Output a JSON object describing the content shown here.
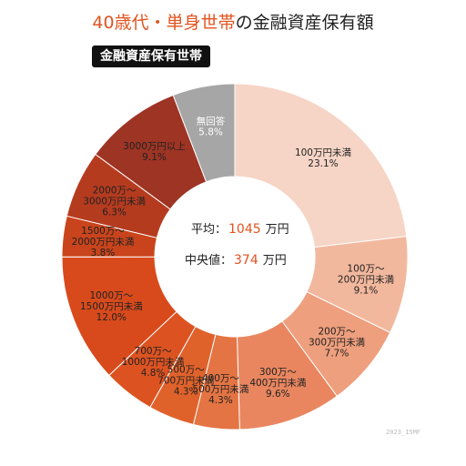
{
  "header": {
    "title_accent": "40歳代・単身世帯",
    "title_rest": "の金融資産保有額",
    "badge": "金融資産保有世帯"
  },
  "summary": {
    "average_label": "平均：",
    "average_value": "1045",
    "average_unit": "万円",
    "median_label": "中央値：",
    "median_value": "374",
    "median_unit": "万円"
  },
  "watermark": "2023_15MF",
  "chart_data": {
    "type": "pie",
    "title": "40歳代・単身世帯の金融資産保有額",
    "subtitle": "金融資産保有世帯",
    "slices": [
      {
        "lines": [
          "100万円未満",
          "23.1%"
        ],
        "value": 23.1,
        "color": "#f6d5c6"
      },
      {
        "lines": [
          "100万～",
          "200万円未満",
          "9.1%"
        ],
        "value": 9.1,
        "color": "#f2b89e"
      },
      {
        "lines": [
          "200万～",
          "300万円未満",
          "7.7%"
        ],
        "value": 7.7,
        "color": "#ee9f7d"
      },
      {
        "lines": [
          "300万～",
          "400万円未満",
          "9.6%"
        ],
        "value": 9.6,
        "color": "#e98660"
      },
      {
        "lines": [
          "400万～",
          "500万円未満",
          "4.3%"
        ],
        "value": 4.3,
        "color": "#e47443"
      },
      {
        "lines": [
          "500万～",
          "700万円未満",
          "4.3%"
        ],
        "value": 4.3,
        "color": "#e0622b"
      },
      {
        "lines": [
          "700万～",
          "1000万円未満",
          "4.8%"
        ],
        "value": 4.8,
        "color": "#dc5321"
      },
      {
        "lines": [
          "1000万～",
          "1500万円未満",
          "12.0%"
        ],
        "value": 12.0,
        "color": "#d84a1c"
      },
      {
        "lines": [
          "1500万～",
          "2000万円未満",
          "3.8%"
        ],
        "value": 3.8,
        "color": "#c9441c"
      },
      {
        "lines": [
          "2000万～",
          "3000万円未満",
          "6.3%"
        ],
        "value": 6.3,
        "color": "#b53b1f"
      },
      {
        "lines": [
          "3000万円以上",
          "9.1%"
        ],
        "value": 9.1,
        "color": "#9e3424"
      },
      {
        "lines": [
          "無回答",
          "5.8%"
        ],
        "value": 5.8,
        "color": "#a6a6a6",
        "light_text": true
      }
    ]
  }
}
